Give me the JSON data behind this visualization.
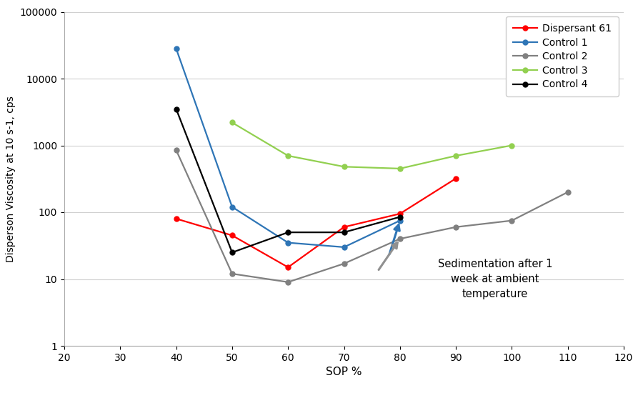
{
  "title": "",
  "xlabel": "SOP %",
  "ylabel": "Disperson Viscosity at 10 s-1, cps",
  "xlim": [
    20,
    120
  ],
  "ylim_log": [
    1,
    100000
  ],
  "xticks": [
    20,
    30,
    40,
    50,
    60,
    70,
    80,
    90,
    100,
    110,
    120
  ],
  "yticks": [
    1,
    10,
    100,
    1000,
    10000,
    100000
  ],
  "ytick_labels": [
    "1",
    "10",
    "100",
    "1000",
    "10000",
    "100000"
  ],
  "series": [
    {
      "label": "Dispersant 61",
      "color": "#FF0000",
      "marker": "o",
      "x": [
        40,
        50,
        60,
        70,
        80,
        90
      ],
      "y": [
        80,
        45,
        15,
        60,
        95,
        320
      ]
    },
    {
      "label": "Control 1",
      "color": "#2E75B6",
      "marker": "o",
      "x": [
        40,
        50,
        60,
        70,
        80
      ],
      "y": [
        28000,
        120,
        35,
        30,
        75
      ]
    },
    {
      "label": "Control 2",
      "color": "#808080",
      "marker": "o",
      "x": [
        40,
        50,
        60,
        70,
        80,
        90,
        100,
        110
      ],
      "y": [
        850,
        12,
        9,
        17,
        40,
        60,
        75,
        200
      ]
    },
    {
      "label": "Control 3",
      "color": "#92D050",
      "marker": "o",
      "x": [
        50,
        60,
        70,
        80,
        90,
        100
      ],
      "y": [
        2200,
        700,
        480,
        450,
        700,
        1000
      ]
    },
    {
      "label": "Control 4",
      "color": "#000000",
      "marker": "o",
      "x": [
        40,
        50,
        60,
        70,
        80
      ],
      "y": [
        3500,
        25,
        50,
        50,
        85
      ]
    }
  ],
  "annotation_text": "Sedimentation after 1\nweek at ambient\ntemperature",
  "background_color": "#FFFFFF",
  "grid_color": "#D0D0D0"
}
